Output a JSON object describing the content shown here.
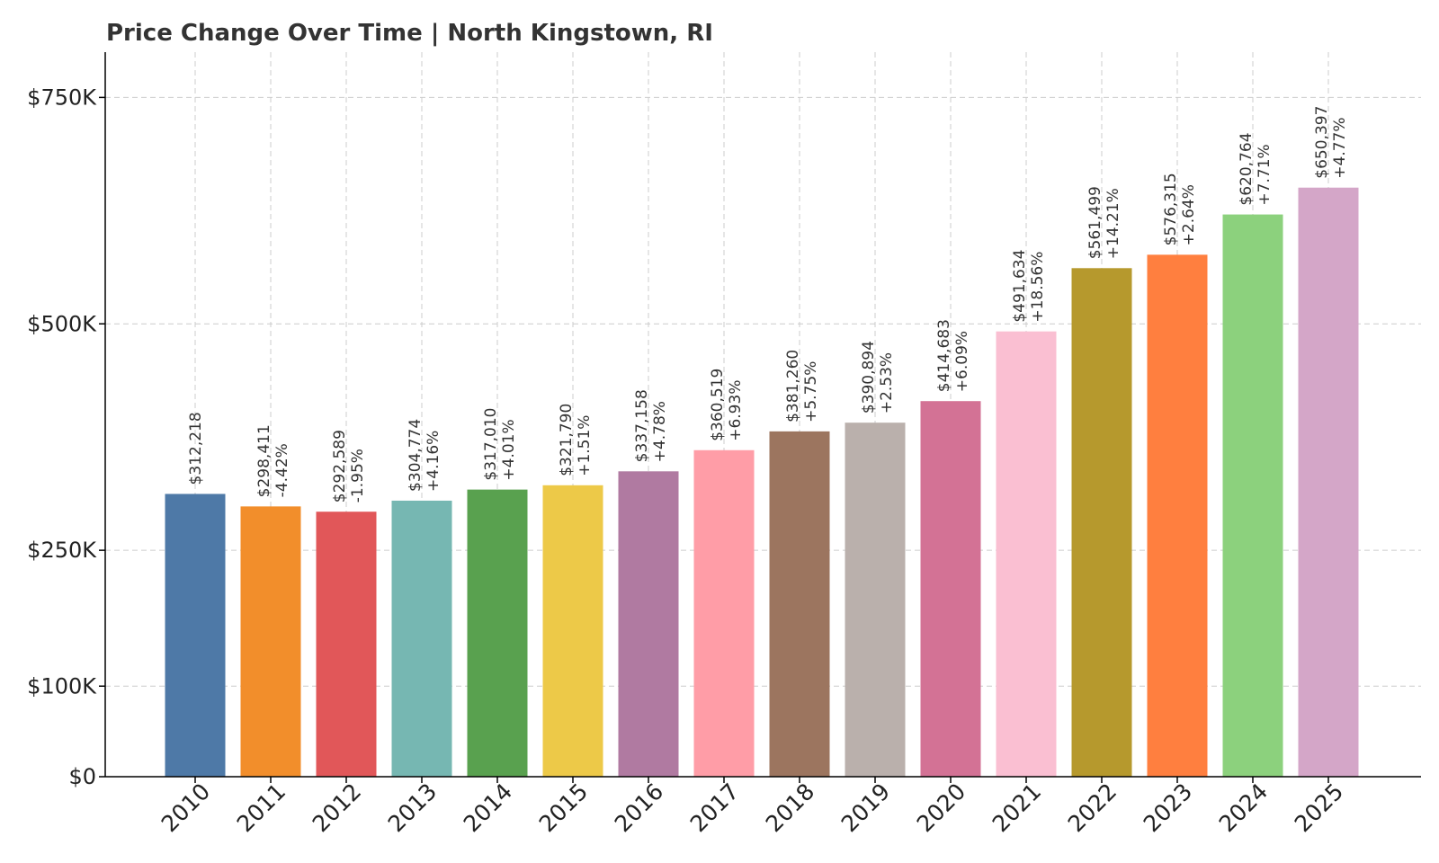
{
  "chart_data": {
    "type": "bar",
    "title": "Price Change Over Time | North Kingstown, RI",
    "xlabel": "",
    "ylabel": "",
    "ylim": [
      0,
      800000
    ],
    "grid": true,
    "categories": [
      "2010",
      "2011",
      "2012",
      "2013",
      "2014",
      "2015",
      "2016",
      "2017",
      "2018",
      "2019",
      "2020",
      "2021",
      "2022",
      "2023",
      "2024",
      "2025"
    ],
    "values": [
      312218,
      298411,
      292589,
      304774,
      317010,
      321790,
      337158,
      360519,
      381260,
      390894,
      414683,
      491634,
      561499,
      576315,
      620764,
      650397
    ],
    "value_labels": [
      "$312,218",
      "$298,411",
      "$292,589",
      "$304,774",
      "$317,010",
      "$321,790",
      "$337,158",
      "$360,519",
      "$381,260",
      "$390,894",
      "$414,683",
      "$491,634",
      "$561,499",
      "$576,315",
      "$620,764",
      "$650,397"
    ],
    "change_labels": [
      "",
      "-4.42%",
      "-1.95%",
      "+4.16%",
      "+4.01%",
      "+1.51%",
      "+4.78%",
      "+6.93%",
      "+5.75%",
      "+2.53%",
      "+6.09%",
      "+18.56%",
      "+14.21%",
      "+2.64%",
      "+7.71%",
      "+4.77%"
    ],
    "colors": [
      "#4e79a7",
      "#f28e2b",
      "#e15759",
      "#76b7b2",
      "#59a14f",
      "#edc948",
      "#b07aa1",
      "#ff9da7",
      "#9c755f",
      "#bab0ac",
      "#d37295",
      "#fabfd2",
      "#b6992d",
      "#ff7f3f",
      "#8cd17d",
      "#d4a6c8"
    ],
    "yticks": [
      {
        "value": 0,
        "label": "$0"
      },
      {
        "value": 100000,
        "label": "$100K"
      },
      {
        "value": 250000,
        "label": "$250K"
      },
      {
        "value": 500000,
        "label": "$500K"
      },
      {
        "value": 750000,
        "label": "$750K"
      }
    ]
  }
}
